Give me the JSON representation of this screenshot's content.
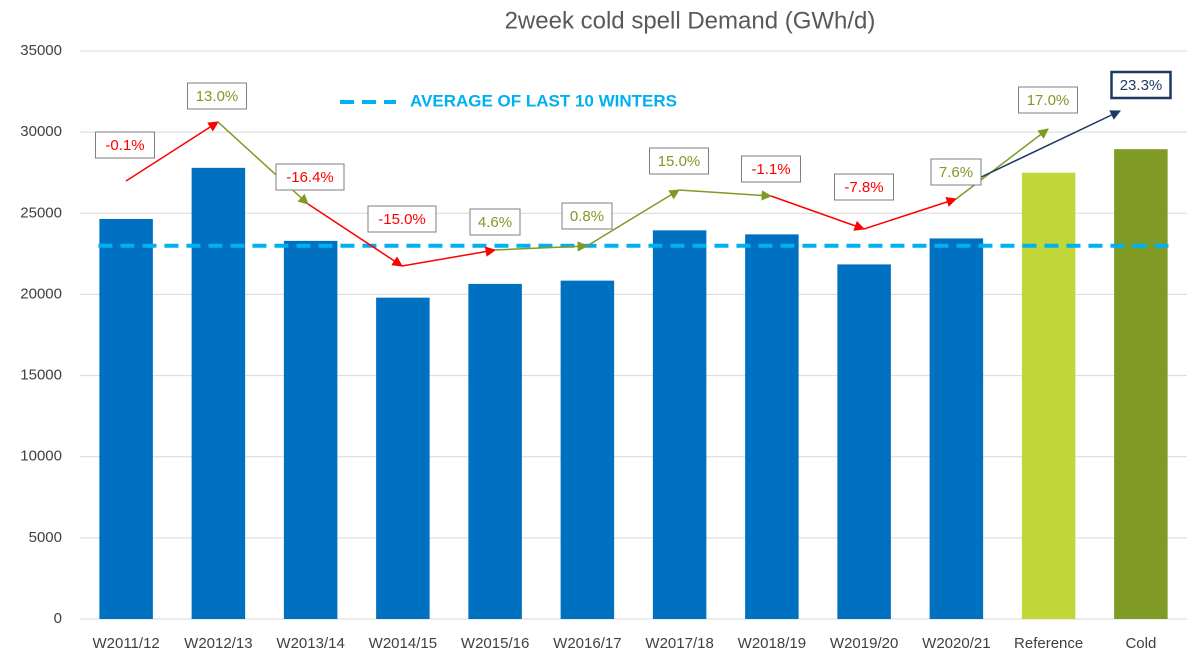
{
  "chart_data": {
    "type": "bar",
    "title": "2week cold spell Demand (GWh/d)",
    "categories": [
      "W2011/12",
      "W2012/13",
      "W2013/14",
      "W2014/15",
      "W2015/16",
      "W2016/17",
      "W2017/18",
      "W2018/19",
      "W2019/20",
      "W2020/21",
      "Reference",
      "Cold"
    ],
    "values": [
      24650,
      27800,
      23300,
      19800,
      20650,
      20850,
      23950,
      23700,
      21850,
      23450,
      27500,
      28950
    ],
    "colors": [
      "#0070c0",
      "#0070c0",
      "#0070c0",
      "#0070c0",
      "#0070c0",
      "#0070c0",
      "#0070c0",
      "#0070c0",
      "#0070c0",
      "#0070c0",
      "#c0d639",
      "#7f9a25"
    ],
    "ylim": [
      0,
      35000
    ],
    "yticks": [
      0,
      5000,
      10000,
      15000,
      20000,
      25000,
      30000,
      35000
    ],
    "grid": true,
    "average": {
      "label": "AVERAGE OF LAST 10 WINTERS",
      "value": 23000,
      "color": "#00b0f0"
    },
    "annotations": [
      {
        "text": "-0.1%",
        "color": "#ff0000"
      },
      {
        "text": "13.0%",
        "color": "#7f9a25"
      },
      {
        "text": "-16.4%",
        "color": "#ff0000"
      },
      {
        "text": "-15.0%",
        "color": "#ff0000"
      },
      {
        "text": "4.6%",
        "color": "#7f9a25"
      },
      {
        "text": "0.8%",
        "color": "#7f9a25"
      },
      {
        "text": "15.0%",
        "color": "#7f9a25"
      },
      {
        "text": "-1.1%",
        "color": "#ff0000"
      },
      {
        "text": "-7.8%",
        "color": "#ff0000"
      },
      {
        "text": "7.6%",
        "color": "#7f9a25"
      },
      {
        "text": "17.0%",
        "color": "#7f9a25"
      },
      {
        "text": "23.3%",
        "color": "#1f3864"
      }
    ]
  }
}
